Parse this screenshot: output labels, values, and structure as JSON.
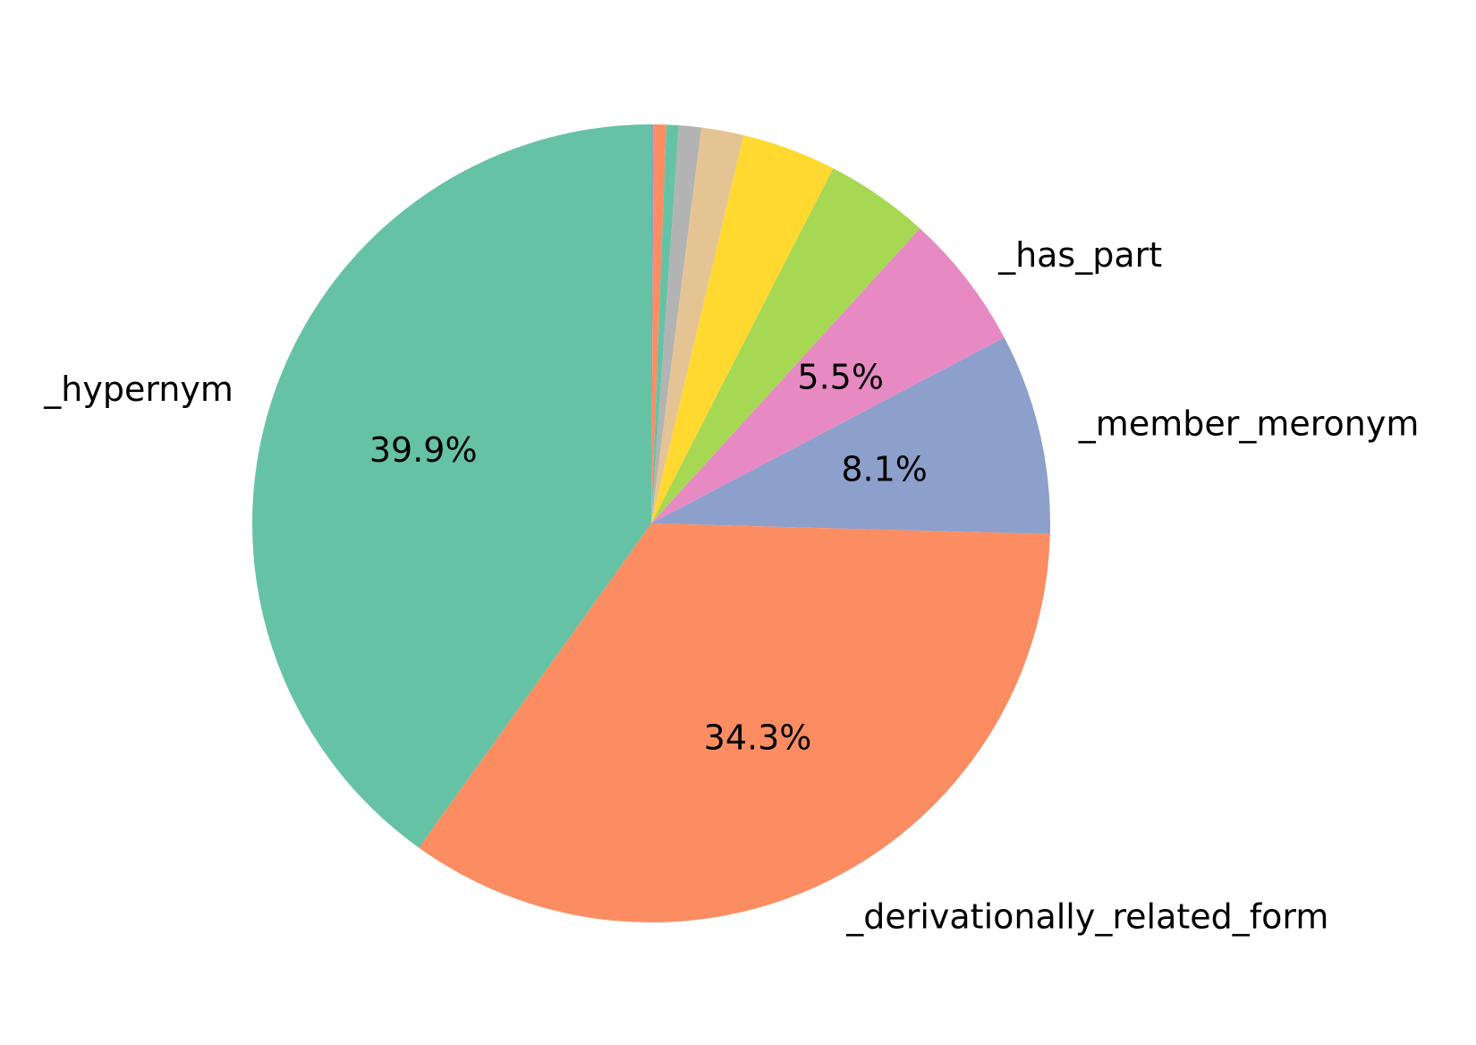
{
  "chart_data": {
    "type": "pie",
    "start_angle_deg": 90,
    "direction": "clockwise",
    "slices": [
      {
        "label": "",
        "value": 0.1,
        "pct_label": "",
        "color": "#8da0cb"
      },
      {
        "label": "",
        "value": 0.5,
        "pct_label": "",
        "color": "#fc8d62"
      },
      {
        "label": "",
        "value": 0.5,
        "pct_label": "",
        "color": "#66c2a5"
      },
      {
        "label": "",
        "value": 0.9,
        "pct_label": "",
        "color": "#b3b3b3"
      },
      {
        "label": "",
        "value": 1.7,
        "pct_label": "",
        "color": "#e5c494"
      },
      {
        "label": "",
        "value": 3.8,
        "pct_label": "",
        "color": "#ffd92f"
      },
      {
        "label": "",
        "value": 4.2,
        "pct_label": "",
        "color": "#a6d854"
      },
      {
        "label": "_has_part",
        "value": 5.5,
        "pct_label": "5.5%",
        "color": "#e78ac3"
      },
      {
        "label": "_member_meronym",
        "value": 8.1,
        "pct_label": "8.1%",
        "color": "#8da0cb"
      },
      {
        "label": "_derivationally_related_form",
        "value": 34.3,
        "pct_label": "34.3%",
        "color": "#fc8d62"
      },
      {
        "label": "_hypernym",
        "value": 39.9,
        "pct_label": "39.9%",
        "color": "#66c2a5"
      }
    ]
  }
}
